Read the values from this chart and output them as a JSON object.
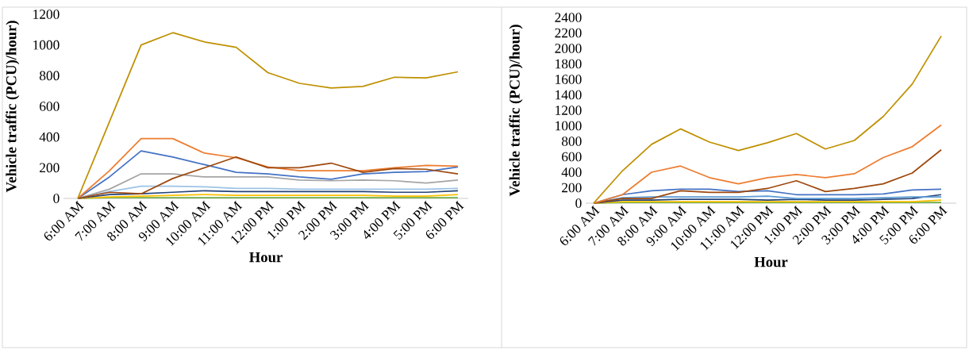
{
  "chart_data": [
    {
      "type": "line",
      "xlabel": "Hour",
      "ylabel": "Vehicle traffic (PCU)/hour)",
      "categories": [
        "6:00 AM",
        "7:00 AM",
        "8:00 AM",
        "9:00 AM",
        "10:00 AM",
        "11:00 AM",
        "12:00 PM",
        "1:00 PM",
        "2:00 PM",
        "3:00 PM",
        "4:00 PM",
        "5:00 PM",
        "6:00 PM"
      ],
      "ylim": [
        0,
        1200
      ],
      "yticks": [
        0,
        200,
        400,
        600,
        800,
        1000,
        1200
      ],
      "marker": "none",
      "line_style": "solid",
      "series": [
        {
          "color": "#70ad47",
          "values": [
            0,
            5,
            5,
            5,
            5,
            5,
            5,
            5,
            5,
            5,
            5,
            5,
            5
          ]
        },
        {
          "color": "#ffc000",
          "values": [
            0,
            10,
            15,
            20,
            25,
            20,
            20,
            20,
            20,
            20,
            15,
            15,
            25
          ]
        },
        {
          "color": "#264478",
          "values": [
            0,
            25,
            30,
            40,
            50,
            45,
            45,
            45,
            45,
            45,
            40,
            40,
            50
          ]
        },
        {
          "color": "#9dc3e6",
          "values": [
            0,
            45,
            80,
            80,
            75,
            65,
            65,
            60,
            60,
            60,
            60,
            60,
            65
          ]
        },
        {
          "color": "#a5a5a5",
          "values": [
            0,
            60,
            160,
            160,
            140,
            140,
            140,
            120,
            115,
            120,
            115,
            100,
            120
          ]
        },
        {
          "color": "#4472c4",
          "values": [
            0,
            140,
            310,
            270,
            220,
            170,
            160,
            140,
            125,
            160,
            170,
            175,
            205
          ]
        },
        {
          "color": "#ed7d31",
          "values": [
            0,
            180,
            390,
            390,
            295,
            265,
            205,
            180,
            180,
            180,
            200,
            215,
            210
          ]
        },
        {
          "color": "#9e480e",
          "values": [
            0,
            40,
            30,
            130,
            200,
            270,
            200,
            200,
            230,
            170,
            195,
            190,
            160
          ]
        },
        {
          "color": "#bf9000",
          "values": [
            0,
            500,
            1000,
            1080,
            1020,
            985,
            820,
            750,
            720,
            730,
            790,
            785,
            825
          ]
        }
      ]
    },
    {
      "type": "line",
      "xlabel": "Hour",
      "ylabel": "Vehicle traffic (PCU)/hour)",
      "categories": [
        "6:00 AM",
        "7:00 AM",
        "8:00 AM",
        "9:00 AM",
        "10:00 AM",
        "11:00 AM",
        "12:00 PM",
        "1:00 PM",
        "2:00 PM",
        "3:00 PM",
        "4:00 PM",
        "5:00 PM",
        "6:00 PM"
      ],
      "ylim": [
        0,
        2400
      ],
      "yticks": [
        0,
        200,
        400,
        600,
        800,
        1000,
        1200,
        1400,
        1600,
        1800,
        2000,
        2200,
        2400
      ],
      "marker": "none",
      "line_style": "solid",
      "series": [
        {
          "color": "#70ad47",
          "values": [
            0,
            10,
            10,
            10,
            10,
            10,
            10,
            10,
            10,
            10,
            10,
            10,
            10
          ]
        },
        {
          "color": "#ffc000",
          "values": [
            0,
            20,
            20,
            20,
            20,
            20,
            20,
            20,
            20,
            20,
            20,
            20,
            40
          ]
        },
        {
          "color": "#264478",
          "values": [
            0,
            40,
            40,
            50,
            50,
            50,
            40,
            50,
            40,
            40,
            50,
            60,
            110
          ]
        },
        {
          "color": "#5b9bd5",
          "values": [
            0,
            70,
            80,
            80,
            80,
            80,
            90,
            60,
            60,
            60,
            70,
            80,
            80
          ]
        },
        {
          "color": "#4472c4",
          "values": [
            0,
            110,
            160,
            180,
            180,
            150,
            160,
            110,
            110,
            110,
            120,
            170,
            180
          ]
        },
        {
          "color": "#9e480e",
          "values": [
            0,
            60,
            60,
            160,
            140,
            140,
            190,
            290,
            150,
            190,
            250,
            390,
            690
          ]
        },
        {
          "color": "#ed7d31",
          "values": [
            0,
            110,
            400,
            480,
            330,
            250,
            330,
            370,
            330,
            380,
            590,
            730,
            1010
          ]
        },
        {
          "color": "#bf9000",
          "values": [
            0,
            420,
            760,
            960,
            790,
            680,
            780,
            900,
            700,
            810,
            1120,
            1540,
            2160
          ]
        }
      ]
    }
  ]
}
